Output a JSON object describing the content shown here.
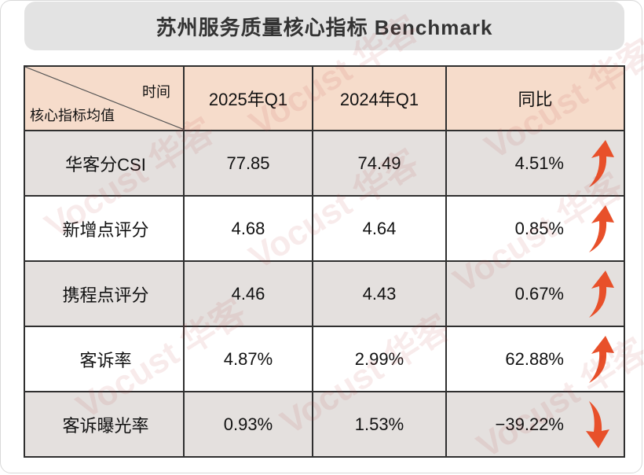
{
  "title": "苏州服务质量核心指标 Benchmark",
  "watermark": "Vocust 华客",
  "table": {
    "corner_top": "时间",
    "corner_bottom": "核心指标均值",
    "col_2025": "2025年Q1",
    "col_2024": "2024年Q1",
    "col_yoy": "同比",
    "rows": [
      {
        "metric": "华客分CSI",
        "v2025": "77.85",
        "v2024": "74.49",
        "yoy": "4.51%",
        "trend": "up"
      },
      {
        "metric": "新增点评分",
        "v2025": "4.68",
        "v2024": "4.64",
        "yoy": "0.85%",
        "trend": "up"
      },
      {
        "metric": "携程点评分",
        "v2025": "4.46",
        "v2024": "4.43",
        "yoy": "0.67%",
        "trend": "up"
      },
      {
        "metric": "客诉率",
        "v2025": "4.87%",
        "v2024": "2.99%",
        "yoy": "62.88%",
        "trend": "up"
      },
      {
        "metric": "客诉曝光率",
        "v2025": "0.93%",
        "v2024": "1.53%",
        "yoy": "−39.22%",
        "trend": "down"
      }
    ]
  },
  "colors": {
    "header_bg": "#f6dccb",
    "shade_bg": "#e4e0de",
    "arrow": "#e8502a",
    "border": "#2f2f2f"
  }
}
